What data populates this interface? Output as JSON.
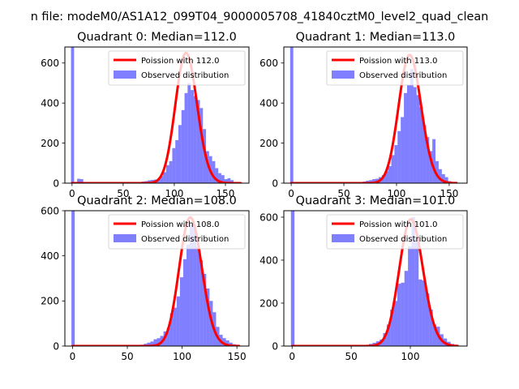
{
  "figure": {
    "suptitle": "n file: modeM0/AS1A12_099T04_9000005708_41840cztM0_level2_quad_clean"
  },
  "colors": {
    "histogram": "#0000ff",
    "histogram_alpha": 0.5,
    "fit": "#ff0000",
    "axes": "#000000",
    "legend_border": "#cccccc"
  },
  "chart_data": [
    {
      "type": "bar",
      "title": "Quadrant 0: Median=112.0",
      "xlim": [
        -7,
        173
      ],
      "ylim": [
        0,
        680
      ],
      "xticks": [
        0,
        50,
        100,
        150
      ],
      "yticks": [
        0,
        200,
        400,
        600
      ],
      "legend": {
        "position": "top-right",
        "entries": [
          "Poission with 112.0",
          "Observed distribution"
        ]
      },
      "histogram": {
        "name": "Observed distribution",
        "bin_width": 3,
        "bins": [
          [
            -1,
            680
          ],
          [
            2,
            5
          ],
          [
            5,
            22
          ],
          [
            8,
            20
          ],
          [
            11,
            5
          ],
          [
            14,
            3
          ],
          [
            17,
            3
          ],
          [
            20,
            3
          ],
          [
            23,
            3
          ],
          [
            26,
            3
          ],
          [
            29,
            3
          ],
          [
            32,
            3
          ],
          [
            35,
            3
          ],
          [
            38,
            3
          ],
          [
            41,
            3
          ],
          [
            44,
            3
          ],
          [
            47,
            3
          ],
          [
            50,
            3
          ],
          [
            53,
            3
          ],
          [
            56,
            3
          ],
          [
            59,
            4
          ],
          [
            62,
            5
          ],
          [
            65,
            6
          ],
          [
            68,
            8
          ],
          [
            71,
            10
          ],
          [
            74,
            14
          ],
          [
            77,
            16
          ],
          [
            80,
            18
          ],
          [
            83,
            20
          ],
          [
            86,
            35
          ],
          [
            89,
            55
          ],
          [
            92,
            90
          ],
          [
            95,
            110
          ],
          [
            98,
            175
          ],
          [
            101,
            215
          ],
          [
            104,
            290
          ],
          [
            107,
            365
          ],
          [
            110,
            450
          ],
          [
            113,
            500
          ],
          [
            116,
            465
          ],
          [
            119,
            435
          ],
          [
            122,
            415
          ],
          [
            125,
            375
          ],
          [
            128,
            270
          ],
          [
            131,
            160
          ],
          [
            134,
            135
          ],
          [
            137,
            110
          ],
          [
            140,
            75
          ],
          [
            143,
            50
          ],
          [
            146,
            40
          ],
          [
            149,
            20
          ],
          [
            152,
            25
          ],
          [
            155,
            15
          ],
          [
            158,
            5
          ]
        ]
      },
      "fit": {
        "name": "Poission with 112.0",
        "lambda": 112.0,
        "peak": 650,
        "x_range": [
          0,
          165
        ]
      }
    },
    {
      "type": "bar",
      "title": "Quadrant 1: Median=113.0",
      "xlim": [
        -7,
        167
      ],
      "ylim": [
        0,
        680
      ],
      "xticks": [
        0,
        50,
        100,
        150
      ],
      "yticks": [
        0,
        200,
        400,
        600
      ],
      "legend": {
        "position": "top-right",
        "entries": [
          "Poission with 113.0",
          "Observed distribution"
        ]
      },
      "histogram": {
        "name": "Observed distribution",
        "bin_width": 3,
        "bins": [
          [
            -1,
            680
          ],
          [
            2,
            3
          ],
          [
            5,
            3
          ],
          [
            8,
            3
          ],
          [
            11,
            3
          ],
          [
            14,
            3
          ],
          [
            17,
            3
          ],
          [
            20,
            3
          ],
          [
            23,
            3
          ],
          [
            26,
            3
          ],
          [
            29,
            3
          ],
          [
            32,
            3
          ],
          [
            35,
            3
          ],
          [
            38,
            3
          ],
          [
            41,
            3
          ],
          [
            44,
            3
          ],
          [
            47,
            3
          ],
          [
            50,
            3
          ],
          [
            53,
            3
          ],
          [
            56,
            3
          ],
          [
            59,
            4
          ],
          [
            62,
            5
          ],
          [
            65,
            6
          ],
          [
            68,
            8
          ],
          [
            71,
            12
          ],
          [
            74,
            15
          ],
          [
            77,
            20
          ],
          [
            80,
            22
          ],
          [
            83,
            30
          ],
          [
            86,
            40
          ],
          [
            89,
            60
          ],
          [
            92,
            85
          ],
          [
            95,
            140
          ],
          [
            98,
            190
          ],
          [
            101,
            260
          ],
          [
            104,
            330
          ],
          [
            107,
            450
          ],
          [
            110,
            490
          ],
          [
            113,
            570
          ],
          [
            116,
            480
          ],
          [
            119,
            440
          ],
          [
            122,
            380
          ],
          [
            125,
            290
          ],
          [
            128,
            230
          ],
          [
            131,
            160
          ],
          [
            134,
            220
          ],
          [
            137,
            110
          ],
          [
            140,
            70
          ],
          [
            143,
            45
          ],
          [
            146,
            30
          ],
          [
            149,
            10
          ],
          [
            152,
            5
          ]
        ]
      },
      "fit": {
        "name": "Poission with 113.0",
        "lambda": 113.0,
        "peak": 640,
        "x_range": [
          0,
          157
        ]
      }
    },
    {
      "type": "bar",
      "title": "Quadrant 2: Median=108.0",
      "xlim": [
        -7,
        161
      ],
      "ylim": [
        0,
        600
      ],
      "xticks": [
        0,
        50,
        100,
        150
      ],
      "yticks": [
        0,
        200,
        400,
        600
      ],
      "legend": {
        "position": "top-right",
        "entries": [
          "Poission with 108.0",
          "Observed distribution"
        ]
      },
      "histogram": {
        "name": "Observed distribution",
        "bin_width": 3,
        "bins": [
          [
            -1,
            600
          ],
          [
            2,
            3
          ],
          [
            5,
            3
          ],
          [
            8,
            3
          ],
          [
            11,
            3
          ],
          [
            14,
            3
          ],
          [
            17,
            3
          ],
          [
            20,
            3
          ],
          [
            23,
            3
          ],
          [
            26,
            3
          ],
          [
            29,
            3
          ],
          [
            32,
            3
          ],
          [
            35,
            3
          ],
          [
            38,
            3
          ],
          [
            41,
            3
          ],
          [
            44,
            3
          ],
          [
            47,
            3
          ],
          [
            50,
            3
          ],
          [
            53,
            3
          ],
          [
            56,
            3
          ],
          [
            59,
            4
          ],
          [
            62,
            6
          ],
          [
            65,
            10
          ],
          [
            68,
            15
          ],
          [
            71,
            20
          ],
          [
            74,
            30
          ],
          [
            77,
            35
          ],
          [
            80,
            45
          ],
          [
            83,
            65
          ],
          [
            86,
            80
          ],
          [
            89,
            145
          ],
          [
            92,
            170
          ],
          [
            95,
            220
          ],
          [
            98,
            305
          ],
          [
            101,
            385
          ],
          [
            104,
            450
          ],
          [
            107,
            540
          ],
          [
            110,
            530
          ],
          [
            113,
            440
          ],
          [
            116,
            380
          ],
          [
            119,
            320
          ],
          [
            122,
            255
          ],
          [
            125,
            200
          ],
          [
            128,
            150
          ],
          [
            131,
            85
          ],
          [
            134,
            50
          ],
          [
            137,
            35
          ],
          [
            140,
            25
          ],
          [
            143,
            15
          ],
          [
            146,
            8
          ]
        ]
      },
      "fit": {
        "name": "Poission with 108.0",
        "lambda": 108.0,
        "peak": 570,
        "x_range": [
          0,
          152
        ]
      }
    },
    {
      "type": "bar",
      "title": "Quadrant 3: Median=101.0",
      "xlim": [
        -7,
        148
      ],
      "ylim": [
        0,
        630
      ],
      "xticks": [
        0,
        50,
        100
      ],
      "yticks": [
        0,
        200,
        400,
        600
      ],
      "legend": {
        "position": "top-right",
        "entries": [
          "Poission with 101.0",
          "Observed distribution"
        ]
      },
      "histogram": {
        "name": "Observed distribution",
        "bin_width": 3,
        "bins": [
          [
            -1,
            630
          ],
          [
            2,
            3
          ],
          [
            5,
            3
          ],
          [
            8,
            3
          ],
          [
            11,
            3
          ],
          [
            14,
            3
          ],
          [
            17,
            3
          ],
          [
            20,
            3
          ],
          [
            23,
            3
          ],
          [
            26,
            3
          ],
          [
            29,
            3
          ],
          [
            32,
            3
          ],
          [
            35,
            3
          ],
          [
            38,
            3
          ],
          [
            41,
            3
          ],
          [
            44,
            3
          ],
          [
            47,
            3
          ],
          [
            50,
            3
          ],
          [
            53,
            3
          ],
          [
            56,
            3
          ],
          [
            59,
            4
          ],
          [
            62,
            6
          ],
          [
            65,
            10
          ],
          [
            68,
            15
          ],
          [
            71,
            22
          ],
          [
            74,
            30
          ],
          [
            77,
            60
          ],
          [
            80,
            100
          ],
          [
            83,
            170
          ],
          [
            86,
            210
          ],
          [
            89,
            290
          ],
          [
            92,
            295
          ],
          [
            95,
            350
          ],
          [
            98,
            465
          ],
          [
            101,
            600
          ],
          [
            104,
            500
          ],
          [
            107,
            310
          ],
          [
            110,
            305
          ],
          [
            113,
            245
          ],
          [
            116,
            170
          ],
          [
            119,
            100
          ],
          [
            122,
            90
          ],
          [
            125,
            55
          ],
          [
            128,
            35
          ],
          [
            131,
            20
          ],
          [
            134,
            10
          ]
        ]
      },
      "fit": {
        "name": "Poission with 101.0",
        "lambda": 101.0,
        "peak": 590,
        "x_range": [
          0,
          140
        ]
      }
    }
  ]
}
